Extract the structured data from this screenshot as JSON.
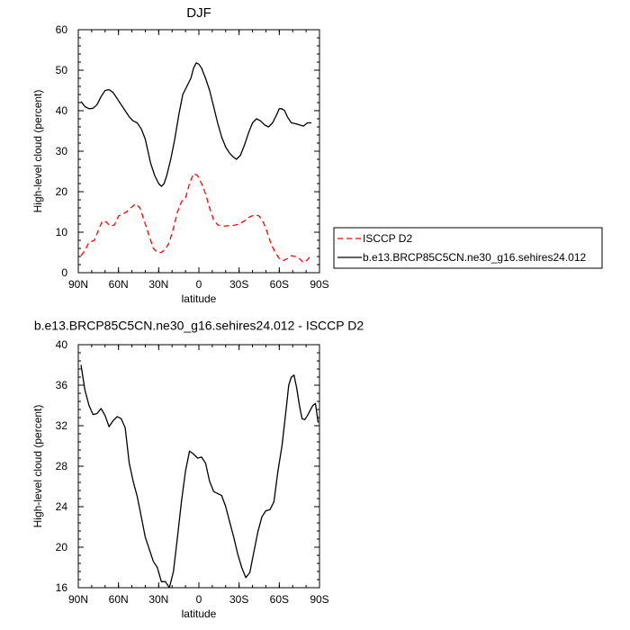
{
  "chart_data": [
    {
      "type": "line",
      "title": "DJF",
      "xlabel": "latitude",
      "ylabel": "High-level cloud (percent)",
      "xlim": [
        90,
        -90
      ],
      "ylim": [
        0,
        60
      ],
      "x_tick_values": [
        90,
        60,
        30,
        0,
        -30,
        -60,
        -90
      ],
      "x_tick_labels": [
        "90N",
        "60N",
        "30N",
        "0",
        "30S",
        "60S",
        "90S"
      ],
      "y_ticks": [
        0,
        10,
        20,
        30,
        40,
        50,
        60
      ],
      "grid": false,
      "legend": "right",
      "series": [
        {
          "name": "ISCCP D2",
          "color": "#ff0000",
          "dash": "dashed",
          "points": [
            [
              88,
              4.2
            ],
            [
              85,
              5.5
            ],
            [
              82,
              7.5
            ],
            [
              78,
              8.0
            ],
            [
              75,
              10.5
            ],
            [
              72,
              12.8
            ],
            [
              69,
              12.5
            ],
            [
              66,
              11.5
            ],
            [
              63,
              11.8
            ],
            [
              60,
              14.0
            ],
            [
              57,
              14.5
            ],
            [
              54,
              15.0
            ],
            [
              51,
              16.0
            ],
            [
              47,
              17.0
            ],
            [
              44,
              16.0
            ],
            [
              41,
              13.0
            ],
            [
              37,
              9.0
            ],
            [
              34,
              6.0
            ],
            [
              31,
              5.0
            ],
            [
              28,
              5.0
            ],
            [
              25,
              5.8
            ],
            [
              22,
              7.5
            ],
            [
              19,
              11.0
            ],
            [
              16,
              15.0
            ],
            [
              13,
              17.5
            ],
            [
              10,
              18.5
            ],
            [
              7,
              22.0
            ],
            [
              4,
              24.5
            ],
            [
              1,
              24.0
            ],
            [
              -2,
              22.0
            ],
            [
              -5,
              19.5
            ],
            [
              -8,
              16.0
            ],
            [
              -11,
              13.0
            ],
            [
              -14,
              11.8
            ],
            [
              -18,
              11.5
            ],
            [
              -22,
              11.6
            ],
            [
              -26,
              11.7
            ],
            [
              -30,
              12.0
            ],
            [
              -34,
              12.8
            ],
            [
              -38,
              13.8
            ],
            [
              -42,
              14.3
            ],
            [
              -45,
              14.0
            ],
            [
              -48,
              12.5
            ],
            [
              -51,
              10.0
            ],
            [
              -54,
              7.0
            ],
            [
              -57,
              5.0
            ],
            [
              -60,
              3.5
            ],
            [
              -63,
              3.0
            ],
            [
              -66,
              3.5
            ],
            [
              -69,
              4.2
            ],
            [
              -72,
              4.0
            ],
            [
              -75,
              3.5
            ],
            [
              -78,
              2.5
            ],
            [
              -81,
              3.2
            ],
            [
              -84,
              4.5
            ]
          ]
        },
        {
          "name": "b.e13.BRCP85C5CN.ne30_g16.sehires24.012",
          "color": "#000000",
          "dash": "solid",
          "points": [
            [
              88,
              42.3
            ],
            [
              85,
              41.0
            ],
            [
              82,
              40.5
            ],
            [
              79,
              40.6
            ],
            [
              76,
              41.5
            ],
            [
              73,
              43.5
            ],
            [
              70,
              45.0
            ],
            [
              67,
              45.2
            ],
            [
              64,
              44.5
            ],
            [
              61,
              43.0
            ],
            [
              58,
              41.5
            ],
            [
              55,
              40.0
            ],
            [
              52,
              38.5
            ],
            [
              49,
              37.5
            ],
            [
              46,
              37.0
            ],
            [
              43,
              35.5
            ],
            [
              40,
              33.0
            ],
            [
              38,
              30.0
            ],
            [
              36,
              27.0
            ],
            [
              33,
              24.0
            ],
            [
              30,
              22.0
            ],
            [
              28,
              21.3
            ],
            [
              26,
              22.0
            ],
            [
              24,
              24.0
            ],
            [
              21,
              28.0
            ],
            [
              18,
              33.0
            ],
            [
              15,
              39.0
            ],
            [
              12,
              44.0
            ],
            [
              9,
              46.0
            ],
            [
              6,
              48.0
            ],
            [
              4,
              50.5
            ],
            [
              2,
              51.8
            ],
            [
              0,
              51.5
            ],
            [
              -2,
              50.5
            ],
            [
              -5,
              48.0
            ],
            [
              -8,
              45.0
            ],
            [
              -11,
              41.0
            ],
            [
              -14,
              37.0
            ],
            [
              -17,
              33.5
            ],
            [
              -20,
              31.0
            ],
            [
              -23,
              29.5
            ],
            [
              -26,
              28.5
            ],
            [
              -28,
              28.0
            ],
            [
              -31,
              29.0
            ],
            [
              -34,
              31.5
            ],
            [
              -37,
              34.5
            ],
            [
              -40,
              37.0
            ],
            [
              -43,
              38.0
            ],
            [
              -46,
              37.5
            ],
            [
              -49,
              36.5
            ],
            [
              -52,
              36.0
            ],
            [
              -55,
              37.0
            ],
            [
              -58,
              39.0
            ],
            [
              -60,
              40.5
            ],
            [
              -62,
              40.5
            ],
            [
              -64,
              40.0
            ],
            [
              -66,
              38.5
            ],
            [
              -69,
              37.0
            ],
            [
              -72,
              36.8
            ],
            [
              -75,
              36.5
            ],
            [
              -78,
              36.2
            ],
            [
              -81,
              37.0
            ],
            [
              -84,
              37.0
            ]
          ]
        }
      ]
    },
    {
      "type": "line",
      "title": "b.e13.BRCP85C5CN.ne30_g16.sehires24.012 - ISCCP D2",
      "xlabel": "latitude",
      "ylabel": "High-level cloud (percent)",
      "xlim": [
        90,
        -90
      ],
      "ylim": [
        16,
        40
      ],
      "x_tick_values": [
        90,
        60,
        30,
        0,
        -30,
        -60,
        -90
      ],
      "x_tick_labels": [
        "90N",
        "60N",
        "30N",
        "0",
        "30S",
        "60S",
        "90S"
      ],
      "y_ticks": [
        16,
        20,
        24,
        28,
        32,
        36,
        40
      ],
      "grid": false,
      "series": [
        {
          "color": "#000000",
          "dash": "solid",
          "points": [
            [
              88,
              38.0
            ],
            [
              85,
              35.5
            ],
            [
              82,
              34.0
            ],
            [
              79,
              33.1
            ],
            [
              76,
              33.2
            ],
            [
              73,
              33.7
            ],
            [
              70,
              33.0
            ],
            [
              67,
              31.9
            ],
            [
              64,
              32.5
            ],
            [
              61,
              32.9
            ],
            [
              58,
              32.7
            ],
            [
              55,
              31.8
            ],
            [
              52,
              28.3
            ],
            [
              49,
              26.5
            ],
            [
              46,
              25.0
            ],
            [
              43,
              23.0
            ],
            [
              40,
              21.0
            ],
            [
              37,
              19.8
            ],
            [
              34,
              18.6
            ],
            [
              31,
              18.0
            ],
            [
              28,
              16.6
            ],
            [
              25,
              16.6
            ],
            [
              22,
              16.0
            ],
            [
              19,
              17.6
            ],
            [
              16,
              21.0
            ],
            [
              13,
              24.5
            ],
            [
              10,
              27.5
            ],
            [
              7,
              29.5
            ],
            [
              4,
              29.2
            ],
            [
              1,
              28.8
            ],
            [
              -2,
              28.9
            ],
            [
              -5,
              28.3
            ],
            [
              -8,
              26.5
            ],
            [
              -11,
              25.5
            ],
            [
              -14,
              25.3
            ],
            [
              -17,
              25.1
            ],
            [
              -20,
              24.0
            ],
            [
              -23,
              22.5
            ],
            [
              -26,
              21.0
            ],
            [
              -29,
              19.3
            ],
            [
              -32,
              18.0
            ],
            [
              -35,
              17.0
            ],
            [
              -38,
              17.5
            ],
            [
              -41,
              19.5
            ],
            [
              -44,
              21.5
            ],
            [
              -47,
              23.0
            ],
            [
              -50,
              23.6
            ],
            [
              -53,
              23.7
            ],
            [
              -56,
              24.5
            ],
            [
              -59,
              27.5
            ],
            [
              -62,
              30.0
            ],
            [
              -65,
              33.5
            ],
            [
              -67,
              36.0
            ],
            [
              -69,
              36.8
            ],
            [
              -71,
              37.0
            ],
            [
              -73,
              35.7
            ],
            [
              -75,
              34.0
            ],
            [
              -77,
              32.7
            ],
            [
              -79,
              32.6
            ],
            [
              -81,
              33.0
            ],
            [
              -83,
              33.5
            ],
            [
              -85,
              34.0
            ],
            [
              -87,
              34.2
            ],
            [
              -89,
              32.3
            ]
          ]
        }
      ]
    }
  ]
}
